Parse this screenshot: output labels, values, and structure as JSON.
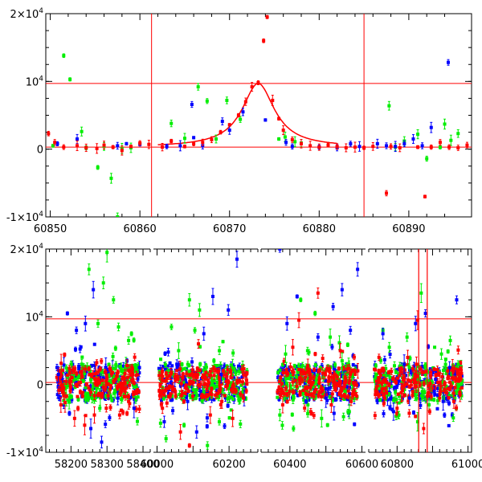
{
  "colors": {
    "frame": "#000000",
    "red": "#ff0000",
    "green": "#00ee00",
    "blue": "#0000ff",
    "reference_line": "#ff0000"
  },
  "chart_data": [
    {
      "type": "scatter",
      "title": "",
      "xlabel": "",
      "ylabel": "",
      "xlim": [
        60849.5,
        60897
      ],
      "ylim": [
        -10000,
        20000
      ],
      "x_ticks": [
        60850,
        60860,
        60870,
        60880,
        60890
      ],
      "y_tick_labels": [
        {
          "value": 20000,
          "mantissa": "2×10",
          "exponent": "4"
        },
        {
          "value": 10000,
          "mantissa": "10",
          "exponent": "4"
        },
        {
          "value": 0,
          "mantissa": "0",
          "exponent": ""
        },
        {
          "value": -10000,
          "mantissa": "-1×10",
          "exponent": "4"
        }
      ],
      "hlines": [
        9700,
        300
      ],
      "vlines": [
        60861.3,
        60885
      ],
      "model_curve": {
        "t0": 60873.2,
        "amplitude": 9400,
        "baseline": 300,
        "tE": 2.2
      },
      "series": [
        {
          "name": "red",
          "points": [
            [
              60849.8,
              2300
            ],
            [
              60850.5,
              1000
            ],
            [
              60851.5,
              300
            ],
            [
              60853,
              500
            ],
            [
              60854,
              200
            ],
            [
              60855.2,
              100
            ],
            [
              60856,
              600
            ],
            [
              60857,
              300
            ],
            [
              60858,
              -200
            ],
            [
              60859,
              400
            ],
            [
              60860,
              900
            ],
            [
              60861,
              700
            ],
            [
              60862.5,
              300
            ],
            [
              60863.5,
              1200
            ],
            [
              60865,
              400
            ],
            [
              60866,
              800
            ],
            [
              60867,
              1000
            ],
            [
              60868,
              1400
            ],
            [
              60869,
              2500
            ],
            [
              60870,
              3600
            ],
            [
              60871,
              5000
            ],
            [
              60871.8,
              7000
            ],
            [
              60872.5,
              9200
            ],
            [
              60873.2,
              9800
            ],
            [
              60873.8,
              16000
            ],
            [
              60874.2,
              19500
            ],
            [
              60874.8,
              7200
            ],
            [
              60875.5,
              4500
            ],
            [
              60876,
              2800
            ],
            [
              60877,
              1400
            ],
            [
              60878,
              800
            ],
            [
              60879,
              500
            ],
            [
              60880,
              300
            ],
            [
              60881,
              600
            ],
            [
              60882,
              400
            ],
            [
              60883,
              200
            ],
            [
              60884,
              300
            ],
            [
              60885,
              200
            ],
            [
              60886,
              400
            ],
            [
              60887.5,
              -6500
            ],
            [
              60888,
              400
            ],
            [
              60889,
              200
            ],
            [
              60891,
              300
            ],
            [
              60891.8,
              -7000
            ],
            [
              60892.5,
              300
            ],
            [
              60893.5,
              1000
            ],
            [
              60894.5,
              300
            ],
            [
              60895.5,
              200
            ],
            [
              60896.5,
              600
            ]
          ]
        },
        {
          "name": "green",
          "points": [
            [
              60850.3,
              500
            ],
            [
              60851.5,
              13800
            ],
            [
              60852.2,
              10300
            ],
            [
              60853.5,
              2600
            ],
            [
              60854,
              200
            ],
            [
              60855.3,
              -2700
            ],
            [
              60856,
              400
            ],
            [
              60856.8,
              -4300
            ],
            [
              60857.5,
              -10000
            ],
            [
              60858,
              100
            ],
            [
              60859,
              200
            ],
            [
              60863.5,
              3800
            ],
            [
              60865,
              1600
            ],
            [
              60866.5,
              9200
            ],
            [
              60867.5,
              7100
            ],
            [
              60868.5,
              1500
            ],
            [
              60869.7,
              7200
            ],
            [
              60871.2,
              4400
            ],
            [
              60875.5,
              1500
            ],
            [
              60876.2,
              1800
            ],
            [
              60877.3,
              1100
            ],
            [
              60878,
              900
            ],
            [
              60887.8,
              6400
            ],
            [
              60888.5,
              300
            ],
            [
              60889.5,
              1200
            ],
            [
              60891,
              2200
            ],
            [
              60892,
              -1400
            ],
            [
              60893.5,
              300
            ],
            [
              60894,
              3700
            ],
            [
              60894.7,
              1300
            ],
            [
              60895.5,
              2300
            ]
          ]
        },
        {
          "name": "blue",
          "points": [
            [
              60850.8,
              800
            ],
            [
              60853,
              1500
            ],
            [
              60857.5,
              500
            ],
            [
              60858.5,
              800
            ],
            [
              60860,
              700
            ],
            [
              60863,
              400
            ],
            [
              60864.5,
              500
            ],
            [
              60865.8,
              6600
            ],
            [
              60866,
              1700
            ],
            [
              60867,
              500
            ],
            [
              60869.2,
              4100
            ],
            [
              60870,
              2800
            ],
            [
              60871.5,
              5500
            ],
            [
              60874,
              4300
            ],
            [
              60876.3,
              1000
            ],
            [
              60877,
              400
            ],
            [
              60880,
              300
            ],
            [
              60882,
              200
            ],
            [
              60883.5,
              800
            ],
            [
              60884.5,
              400
            ],
            [
              60886.5,
              800
            ],
            [
              60887.5,
              500
            ],
            [
              60888.5,
              400
            ],
            [
              60889.5,
              800
            ],
            [
              60890.5,
              1500
            ],
            [
              60891.5,
              500
            ],
            [
              60892.5,
              3200
            ],
            [
              60894.4,
              12800
            ]
          ]
        }
      ]
    },
    {
      "type": "scatter",
      "title": "",
      "xlabel": "",
      "ylabel": "",
      "ylim": [
        -10000,
        20000
      ],
      "x_segments": [
        {
          "xlim": [
            58130,
            58420
          ],
          "ticks": [
            58200,
            58300,
            58400
          ],
          "tick_labels": [
            "58200",
            "58300",
            "58400"
          ]
        },
        {
          "xlim": [
            59990,
            60280
          ],
          "ticks": [
            60000,
            60100,
            60200
          ],
          "tick_labels": [
            "60000",
            "",
            "60200"
          ]
        },
        {
          "xlim": [
            60320,
            60610
          ],
          "ticks": [
            60400,
            60500,
            60600
          ],
          "tick_labels": [
            "60400",
            "",
            "60600"
          ]
        },
        {
          "xlim": [
            60720,
            61010
          ],
          "ticks": [
            60800,
            60900,
            61000
          ],
          "tick_labels": [
            "60800",
            "",
            "61000"
          ]
        }
      ],
      "y_tick_labels": [
        {
          "value": 20000,
          "mantissa": "2×10",
          "exponent": "4"
        },
        {
          "value": 10000,
          "mantissa": "10",
          "exponent": "4"
        },
        {
          "value": 0,
          "mantissa": "0",
          "exponent": ""
        },
        {
          "value": -10000,
          "mantissa": "-1×10",
          "exponent": "4"
        }
      ],
      "hlines": [
        9700,
        300
      ],
      "vlines": [
        60861,
        60885
      ],
      "season_ranges": [
        [
          58160,
          58390
        ],
        [
          60005,
          60250
        ],
        [
          60365,
          60590
        ],
        [
          60735,
          60985
        ]
      ],
      "series": [
        {
          "name": "green",
          "points": [
            [
              58250,
              17000
            ],
            [
              58275,
              9000
            ],
            [
              58290,
              15000
            ],
            [
              58300,
              19500
            ],
            [
              58318,
              12500
            ],
            [
              58332,
              8500
            ],
            [
              58360,
              6500
            ],
            [
              58368,
              7500
            ],
            [
              58230,
              3000
            ],
            [
              58280,
              -3500
            ],
            [
              60040,
              8500
            ],
            [
              60060,
              5000
            ],
            [
              60075,
              -6000
            ],
            [
              60090,
              12500
            ],
            [
              60105,
              8000
            ],
            [
              60118,
              11000
            ],
            [
              60140,
              -9000
            ],
            [
              60158,
              3500
            ],
            [
              60025,
              -8000
            ],
            [
              60210,
              2500
            ],
            [
              60372,
              -4500
            ],
            [
              60388,
              4500
            ],
            [
              60410,
              -6500
            ],
            [
              60430,
              12500
            ],
            [
              60450,
              -3000
            ],
            [
              60470,
              10500
            ],
            [
              60488,
              -5000
            ],
            [
              60512,
              7000
            ],
            [
              60545,
              3500
            ],
            [
              60565,
              -4000
            ],
            [
              60760,
              8000
            ],
            [
              60778,
              5500
            ],
            [
              60805,
              -4500
            ],
            [
              60828,
              7000
            ],
            [
              60858,
              -5500
            ],
            [
              60868,
              13500
            ],
            [
              60890,
              -3000
            ],
            [
              60925,
              4500
            ],
            [
              60950,
              6500
            ],
            [
              60972,
              3000
            ]
          ]
        },
        {
          "name": "blue",
          "points": [
            [
              58165,
              1500
            ],
            [
              58190,
              10500
            ],
            [
              58215,
              8000
            ],
            [
              58240,
              9000
            ],
            [
              58262,
              14000
            ],
            [
              58255,
              -6500
            ],
            [
              58285,
              -8500
            ],
            [
              58330,
              -2000
            ],
            [
              58375,
              -3500
            ],
            [
              58390,
              2500
            ],
            [
              60020,
              -5500
            ],
            [
              60055,
              3000
            ],
            [
              60085,
              -2500
            ],
            [
              60130,
              7500
            ],
            [
              60155,
              13000
            ],
            [
              60178,
              1500
            ],
            [
              60198,
              11000
            ],
            [
              60222,
              18500
            ],
            [
              60242,
              -2000
            ],
            [
              60110,
              -7000
            ],
            [
              60372,
              20000
            ],
            [
              60392,
              9000
            ],
            [
              60420,
              13000
            ],
            [
              60445,
              -2500
            ],
            [
              60478,
              7000
            ],
            [
              60500,
              -2000
            ],
            [
              60520,
              11500
            ],
            [
              60545,
              14000
            ],
            [
              60568,
              8000
            ],
            [
              60588,
              17000
            ],
            [
              60760,
              7500
            ],
            [
              60790,
              -4000
            ],
            [
              60820,
              3000
            ],
            [
              60835,
              -2000
            ],
            [
              60852,
              9000
            ],
            [
              60880,
              10500
            ],
            [
              60905,
              -1000
            ],
            [
              60930,
              -2500
            ],
            [
              60948,
              2500
            ],
            [
              60968,
              12500
            ]
          ]
        },
        {
          "name": "red",
          "points": [
            [
              58172,
              -3000
            ],
            [
              58210,
              -5000
            ],
            [
              58238,
              -6000
            ],
            [
              58265,
              -4500
            ],
            [
              58298,
              -3500
            ],
            [
              58335,
              -4500
            ],
            [
              58360,
              -2500
            ],
            [
              60015,
              -3500
            ],
            [
              60065,
              -7000
            ],
            [
              60090,
              -9000
            ],
            [
              60115,
              6000
            ],
            [
              60148,
              -4500
            ],
            [
              60180,
              -2500
            ],
            [
              60210,
              -5000
            ],
            [
              60240,
              -2000
            ],
            [
              60380,
              -3000
            ],
            [
              60408,
              5500
            ],
            [
              60425,
              9500
            ],
            [
              60458,
              -4000
            ],
            [
              60478,
              13500
            ],
            [
              60515,
              -3000
            ],
            [
              60540,
              5000
            ],
            [
              60570,
              -2500
            ],
            [
              60765,
              -2000
            ],
            [
              60800,
              -3500
            ],
            [
              60830,
              4000
            ],
            [
              60858,
              9500
            ],
            [
              60875,
              -6500
            ],
            [
              60892,
              -4000
            ],
            [
              60920,
              -2000
            ],
            [
              60960,
              -2500
            ]
          ]
        }
      ]
    }
  ]
}
